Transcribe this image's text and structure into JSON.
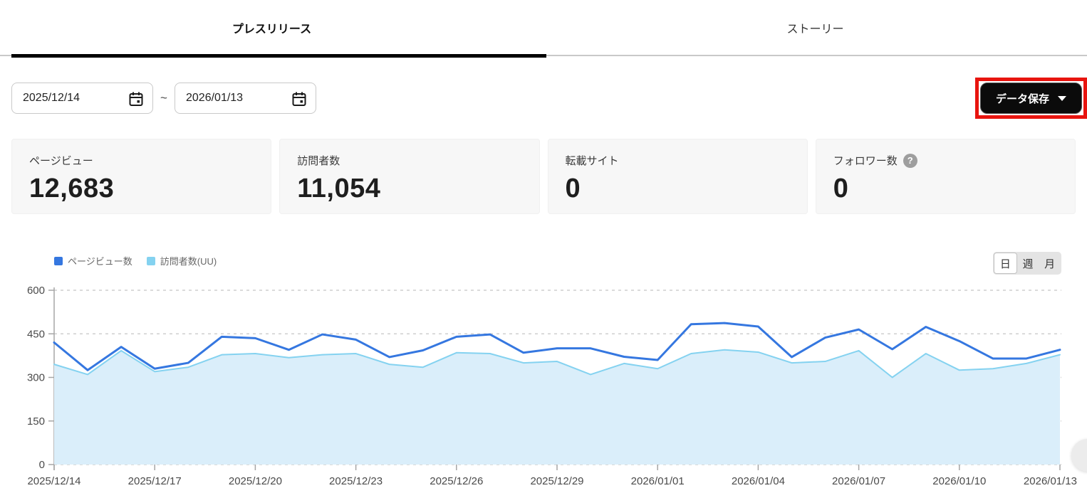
{
  "tabs": [
    {
      "label": "プレスリリース",
      "active": true
    },
    {
      "label": "ストーリー",
      "active": false
    }
  ],
  "date_range": {
    "start": "2025/12/14",
    "separator": "~",
    "end": "2026/01/13"
  },
  "save_button": {
    "label": "データ保存"
  },
  "stats": [
    {
      "label": "ページビュー",
      "value": "12,683"
    },
    {
      "label": "訪問者数",
      "value": "11,054"
    },
    {
      "label": "転載サイト",
      "value": "0"
    },
    {
      "label": "フォロワー数",
      "value": "0",
      "help_glyph": "?"
    }
  ],
  "chart_controls": {
    "granularity": [
      {
        "label": "日",
        "selected": true
      },
      {
        "label": "週",
        "selected": false
      },
      {
        "label": "月",
        "selected": false
      }
    ]
  },
  "chart_data": {
    "type": "line",
    "title": "",
    "xlabel": "",
    "ylabel": "",
    "ylim": [
      0,
      600
    ],
    "yticks": [
      0,
      150,
      300,
      450,
      600
    ],
    "grid": "horizontal-dashed",
    "legend_position": "top-left",
    "x_tick_step": 3,
    "x": [
      "2025/12/14",
      "2025/12/15",
      "2025/12/16",
      "2025/12/17",
      "2025/12/18",
      "2025/12/19",
      "2025/12/20",
      "2025/12/21",
      "2025/12/22",
      "2025/12/23",
      "2025/12/24",
      "2025/12/25",
      "2025/12/26",
      "2025/12/27",
      "2025/12/28",
      "2025/12/29",
      "2025/12/30",
      "2025/12/31",
      "2026/01/01",
      "2026/01/02",
      "2026/01/03",
      "2026/01/04",
      "2026/01/05",
      "2026/01/06",
      "2026/01/07",
      "2026/01/08",
      "2026/01/09",
      "2026/01/10",
      "2026/01/11",
      "2026/01/12",
      "2026/01/13"
    ],
    "x_tick_labels": [
      "2025/12/14",
      "2025/12/17",
      "2025/12/20",
      "2025/12/23",
      "2025/12/26",
      "2025/12/29",
      "2026/01/01",
      "2026/01/04",
      "2026/01/07",
      "2026/01/10",
      "2026/01/13"
    ],
    "series": [
      {
        "name": "ページビュー数",
        "color": "#3577e0",
        "fill": null,
        "line_width": 3,
        "values": [
          420,
          325,
          405,
          330,
          350,
          440,
          435,
          395,
          448,
          430,
          370,
          393,
          440,
          448,
          385,
          400,
          400,
          371,
          360,
          483,
          487,
          475,
          370,
          437,
          465,
          397,
          474,
          425,
          365,
          365,
          395
        ]
      },
      {
        "name": "訪問者数(UU)",
        "color": "#84d2f0",
        "fill": "#daeefa",
        "line_width": 2,
        "values": [
          345,
          310,
          392,
          320,
          335,
          378,
          382,
          368,
          378,
          382,
          345,
          335,
          385,
          382,
          350,
          355,
          310,
          348,
          330,
          382,
          395,
          387,
          350,
          355,
          392,
          300,
          382,
          325,
          330,
          348,
          378
        ]
      }
    ],
    "colors": {
      "grid": "#cfcfcf",
      "axis": "#a6a6a6",
      "tick_label": "#4a4a4a"
    }
  },
  "annotation": {
    "color": "#e8140f"
  }
}
